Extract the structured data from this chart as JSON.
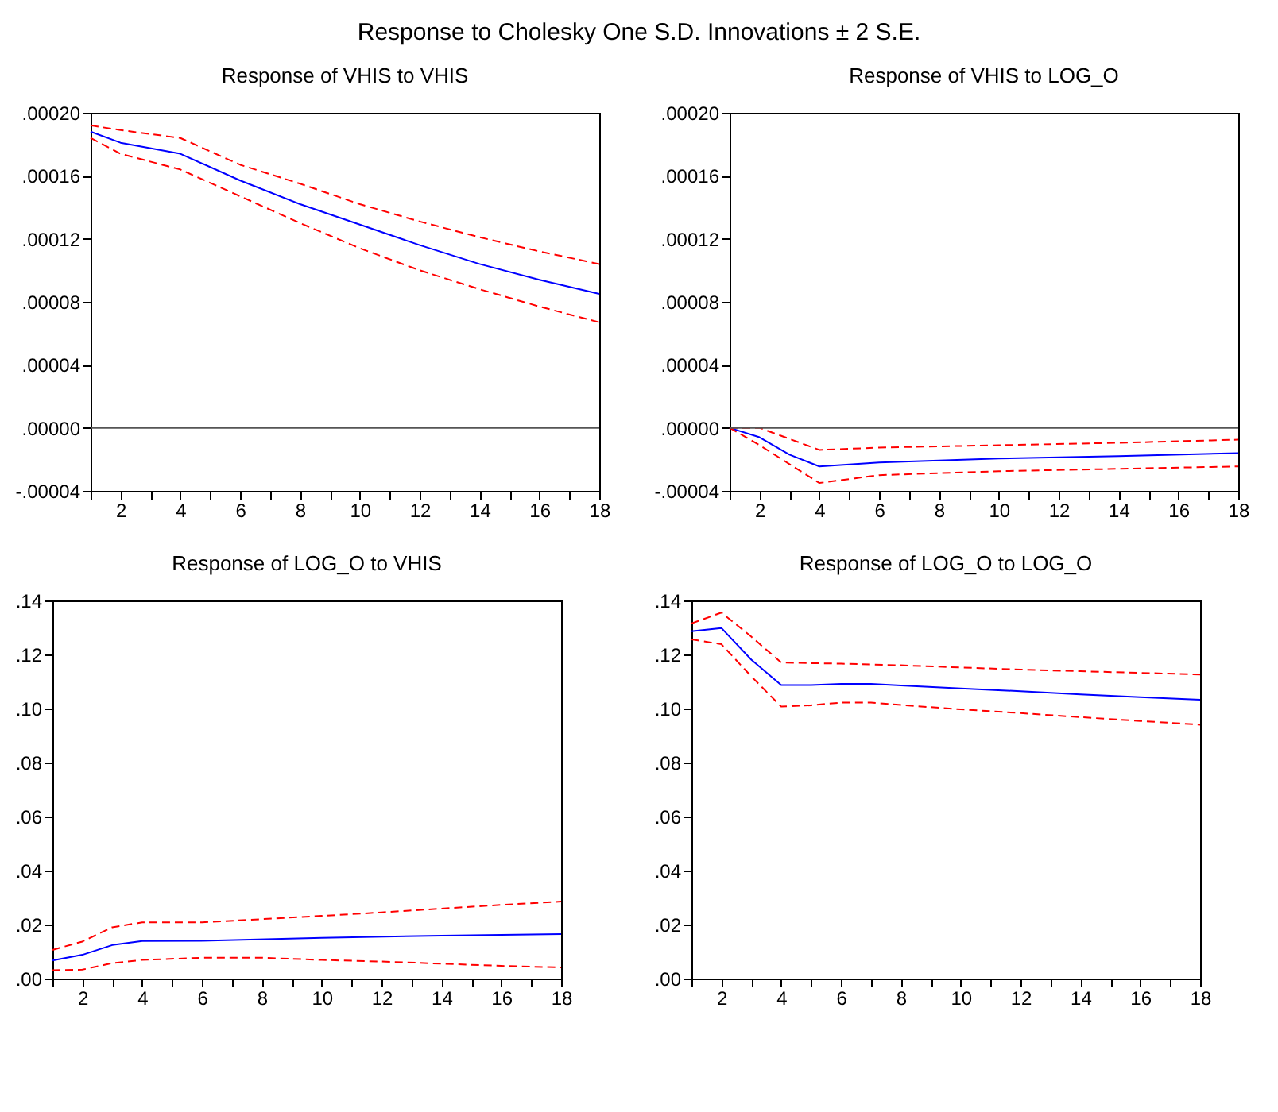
{
  "chart_data": [
    {
      "type": "line",
      "title": "Response of VHIS to VHIS",
      "annotations": [
        "Response to Cholesky One S.D. Innovations ± 2 S.E."
      ],
      "xlim": [
        1,
        18
      ],
      "xticks": [
        {
          "value": 1,
          "label": null
        },
        2,
        {
          "value": 3,
          "label": null
        },
        4,
        {
          "value": 5,
          "label": null
        },
        6,
        {
          "value": 7,
          "label": null
        },
        8,
        {
          "value": 9,
          "label": null
        },
        10,
        {
          "value": 11,
          "label": null
        },
        12,
        {
          "value": 13,
          "label": null
        },
        14,
        {
          "value": 15,
          "label": null
        },
        16,
        {
          "value": 17,
          "label": null
        },
        18
      ],
      "ylim": [
        -4e-05,
        0.0002
      ],
      "yticks": [
        {
          "value": -4e-05,
          "label": "-.00004"
        },
        {
          "value": 0,
          "label": ".00000"
        },
        {
          "value": 4e-05,
          "label": ".00004"
        },
        {
          "value": 8e-05,
          "label": ".00008"
        },
        {
          "value": 0.00012,
          "label": ".00012"
        },
        {
          "value": 0.00016,
          "label": ".00016"
        },
        {
          "value": 0.0002,
          "label": ".00020"
        }
      ],
      "ref_lines": [
        {
          "axis": "y",
          "value": 0,
          "color": "#555555"
        }
      ],
      "series": [
        {
          "color": "#0000ff",
          "line_style": "solid",
          "x": [
            1,
            2,
            4,
            6,
            8,
            10,
            12,
            14,
            16,
            18
          ],
          "values": [
            0.000188,
            0.000181,
            0.000174,
            0.000157,
            0.000142,
            0.000129,
            0.000116,
            0.000104,
            9.4e-05,
            8.5e-05
          ]
        },
        {
          "color": "#ff0000",
          "line_style": "dashed",
          "x": [
            1,
            2,
            4,
            6,
            8,
            10,
            12,
            14,
            16,
            18
          ],
          "values": [
            0.000192,
            0.000189,
            0.000184,
            0.000167,
            0.000155,
            0.000142,
            0.000131,
            0.000121,
            0.000112,
            0.000104
          ]
        },
        {
          "color": "#ff0000",
          "line_style": "dashed",
          "x": [
            1,
            2,
            4,
            6,
            8,
            10,
            12,
            14,
            16,
            18
          ],
          "values": [
            0.000184,
            0.000174,
            0.000164,
            0.000147,
            0.00013,
            0.000114,
            0.0001,
            8.8e-05,
            7.7e-05,
            6.7e-05
          ]
        }
      ]
    },
    {
      "type": "line",
      "title": "Response of VHIS to LOG_O",
      "xlim": [
        1,
        18
      ],
      "xticks": [
        {
          "value": 1,
          "label": null
        },
        2,
        {
          "value": 3,
          "label": null
        },
        4,
        {
          "value": 5,
          "label": null
        },
        6,
        {
          "value": 7,
          "label": null
        },
        8,
        {
          "value": 9,
          "label": null
        },
        10,
        {
          "value": 11,
          "label": null
        },
        12,
        {
          "value": 13,
          "label": null
        },
        14,
        {
          "value": 15,
          "label": null
        },
        16,
        {
          "value": 17,
          "label": null
        },
        18
      ],
      "ylim": [
        -4e-05,
        0.0002
      ],
      "yticks": [
        {
          "value": -4e-05,
          "label": "-.00004"
        },
        {
          "value": 0,
          "label": ".00000"
        },
        {
          "value": 4e-05,
          "label": ".00004"
        },
        {
          "value": 8e-05,
          "label": ".00008"
        },
        {
          "value": 0.00012,
          "label": ".00012"
        },
        {
          "value": 0.00016,
          "label": ".00016"
        },
        {
          "value": 0.0002,
          "label": ".00020"
        }
      ],
      "ref_lines": [
        {
          "axis": "y",
          "value": 0,
          "color": "#555555"
        }
      ],
      "series": [
        {
          "color": "#0000ff",
          "line_style": "solid",
          "x": [
            1,
            2,
            3,
            4,
            6,
            10,
            14,
            18
          ],
          "values": [
            0,
            -6e-06,
            -1.7e-05,
            -2.45e-05,
            -2.2e-05,
            -1.95e-05,
            -1.8e-05,
            -1.6e-05
          ]
        },
        {
          "color": "#ff0000",
          "line_style": "dashed",
          "x": [
            1,
            2,
            3,
            4,
            6,
            10,
            14,
            18
          ],
          "values": [
            0,
            0,
            -7e-06,
            -1.4e-05,
            -1.25e-05,
            -1.1e-05,
            -9.5e-06,
            -7.5e-06
          ]
        },
        {
          "color": "#ff0000",
          "line_style": "dashed",
          "x": [
            1,
            2,
            3,
            4,
            6,
            10,
            14,
            18
          ],
          "values": [
            0,
            -1.1e-05,
            -2.3e-05,
            -3.5e-05,
            -3e-05,
            -2.75e-05,
            -2.6e-05,
            -2.45e-05
          ]
        }
      ]
    },
    {
      "type": "line",
      "title": "Response of LOG_O to VHIS",
      "xlim": [
        1,
        18
      ],
      "xticks": [
        {
          "value": 1,
          "label": null
        },
        2,
        {
          "value": 3,
          "label": null
        },
        4,
        {
          "value": 5,
          "label": null
        },
        6,
        {
          "value": 7,
          "label": null
        },
        8,
        {
          "value": 9,
          "label": null
        },
        10,
        {
          "value": 11,
          "label": null
        },
        12,
        {
          "value": 13,
          "label": null
        },
        14,
        {
          "value": 15,
          "label": null
        },
        16,
        {
          "value": 17,
          "label": null
        },
        18
      ],
      "ylim": [
        0,
        0.14
      ],
      "yticks": [
        {
          "value": 0,
          "label": ".00"
        },
        {
          "value": 0.02,
          "label": ".02"
        },
        {
          "value": 0.04,
          "label": ".04"
        },
        {
          "value": 0.06,
          "label": ".06"
        },
        {
          "value": 0.08,
          "label": ".08"
        },
        {
          "value": 0.1,
          "label": ".10"
        },
        {
          "value": 0.12,
          "label": ".12"
        },
        {
          "value": 0.14,
          "label": ".14"
        }
      ],
      "series": [
        {
          "color": "#0000ff",
          "line_style": "solid",
          "x": [
            1,
            2,
            3,
            4,
            6,
            10,
            14,
            18
          ],
          "values": [
            0.0067,
            0.0088,
            0.0124,
            0.0139,
            0.014,
            0.0151,
            0.0159,
            0.0165
          ]
        },
        {
          "color": "#ff0000",
          "line_style": "dashed",
          "x": [
            1,
            2,
            3,
            4,
            6,
            8,
            10,
            12,
            14,
            16,
            18
          ],
          "values": [
            0.0106,
            0.0137,
            0.019,
            0.0208,
            0.0208,
            0.022,
            0.0232,
            0.0245,
            0.0259,
            0.0273,
            0.0285
          ]
        },
        {
          "color": "#ff0000",
          "line_style": "dashed",
          "x": [
            1,
            2,
            3,
            4,
            6,
            8,
            10,
            12,
            14,
            16,
            18
          ],
          "values": [
            0.0031,
            0.0033,
            0.0057,
            0.0069,
            0.0077,
            0.0077,
            0.0069,
            0.0063,
            0.0055,
            0.0047,
            0.0041
          ]
        }
      ]
    },
    {
      "type": "line",
      "title": "Response of LOG_O to LOG_O",
      "xlim": [
        1,
        18
      ],
      "xticks": [
        {
          "value": 1,
          "label": null
        },
        2,
        {
          "value": 3,
          "label": null
        },
        4,
        {
          "value": 5,
          "label": null
        },
        6,
        {
          "value": 7,
          "label": null
        },
        8,
        {
          "value": 9,
          "label": null
        },
        10,
        {
          "value": 11,
          "label": null
        },
        12,
        {
          "value": 13,
          "label": null
        },
        14,
        {
          "value": 15,
          "label": null
        },
        16,
        {
          "value": 17,
          "label": null
        },
        18
      ],
      "ylim": [
        0,
        0.14
      ],
      "yticks": [
        {
          "value": 0,
          "label": ".00"
        },
        {
          "value": 0.02,
          "label": ".02"
        },
        {
          "value": 0.04,
          "label": ".04"
        },
        {
          "value": 0.06,
          "label": ".06"
        },
        {
          "value": 0.08,
          "label": ".08"
        },
        {
          "value": 0.1,
          "label": ".10"
        },
        {
          "value": 0.12,
          "label": ".12"
        },
        {
          "value": 0.14,
          "label": ".14"
        }
      ],
      "series": [
        {
          "color": "#0000ff",
          "line_style": "solid",
          "x": [
            1,
            2,
            3,
            4,
            5,
            6,
            7,
            8,
            10,
            12,
            14,
            16,
            18
          ],
          "values": [
            0.1286,
            0.1298,
            0.1181,
            0.1087,
            0.1087,
            0.1091,
            0.1091,
            0.1085,
            0.1074,
            0.1064,
            0.1052,
            0.1042,
            0.1032
          ]
        },
        {
          "color": "#ff0000",
          "line_style": "dashed",
          "x": [
            1,
            2,
            3,
            4,
            6,
            8,
            10,
            12,
            14,
            16,
            18
          ],
          "values": [
            0.1315,
            0.1355,
            0.1266,
            0.117,
            0.1166,
            0.116,
            0.1152,
            0.1144,
            0.1138,
            0.1132,
            0.1126
          ]
        },
        {
          "color": "#ff0000",
          "line_style": "dashed",
          "x": [
            1,
            2,
            3,
            4,
            5,
            6,
            7,
            8,
            10,
            12,
            14,
            16,
            18
          ],
          "values": [
            0.1256,
            0.1238,
            0.1119,
            0.1007,
            0.1012,
            0.1022,
            0.1022,
            0.1013,
            0.0997,
            0.0983,
            0.0968,
            0.0954,
            0.094
          ]
        }
      ]
    }
  ]
}
